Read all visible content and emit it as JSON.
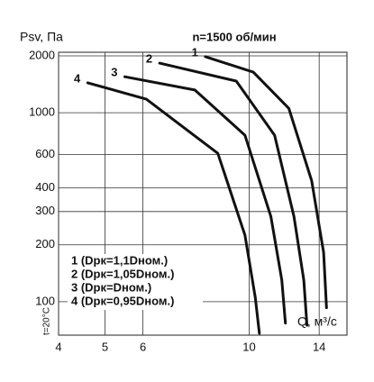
{
  "chart_data": {
    "type": "line",
    "title": "n=1500 об/мин",
    "y_label": "Psv, Па",
    "x_label": "Q, м³/с",
    "note": "t=20°C",
    "log_x": true,
    "log_y": true,
    "grid": true,
    "legend_position": "lower left",
    "color": "#111111",
    "xlim": [
      4,
      16
    ],
    "ylim": [
      66.5,
      2090
    ],
    "xticks": [
      4,
      5,
      6,
      10,
      14
    ],
    "yticks": [
      2000,
      1000,
      600,
      400,
      300,
      200,
      100
    ],
    "series": [
      {
        "name": "1 (Dрк=1,1Dном.)",
        "label": "1",
        "x": [
          8.1,
          10.2,
          12.1,
          13.5,
          14.3,
          14.5
        ],
        "values": [
          1980,
          1640,
          1055,
          437,
          182,
          93
        ]
      },
      {
        "name": "2 (Dрк=1,05Dном.)",
        "label": "2",
        "x": [
          6.5,
          9.4,
          11.3,
          12.4,
          13.0,
          13.2
        ],
        "values": [
          1830,
          1470,
          760,
          282,
          130,
          75
        ]
      },
      {
        "name": "3 (Dрк=Dном.)",
        "label": "3",
        "x": [
          5.5,
          7.7,
          9.8,
          11.1,
          11.7,
          11.9
        ],
        "values": [
          1550,
          1320,
          760,
          282,
          130,
          77
        ]
      },
      {
        "name": "4 (Dрк=0,95Dном.)",
        "label": "4",
        "x": [
          4.6,
          6.1,
          8.6,
          9.8,
          10.3,
          10.5
        ],
        "values": [
          1440,
          1180,
          610,
          225,
          105,
          68
        ]
      }
    ]
  }
}
